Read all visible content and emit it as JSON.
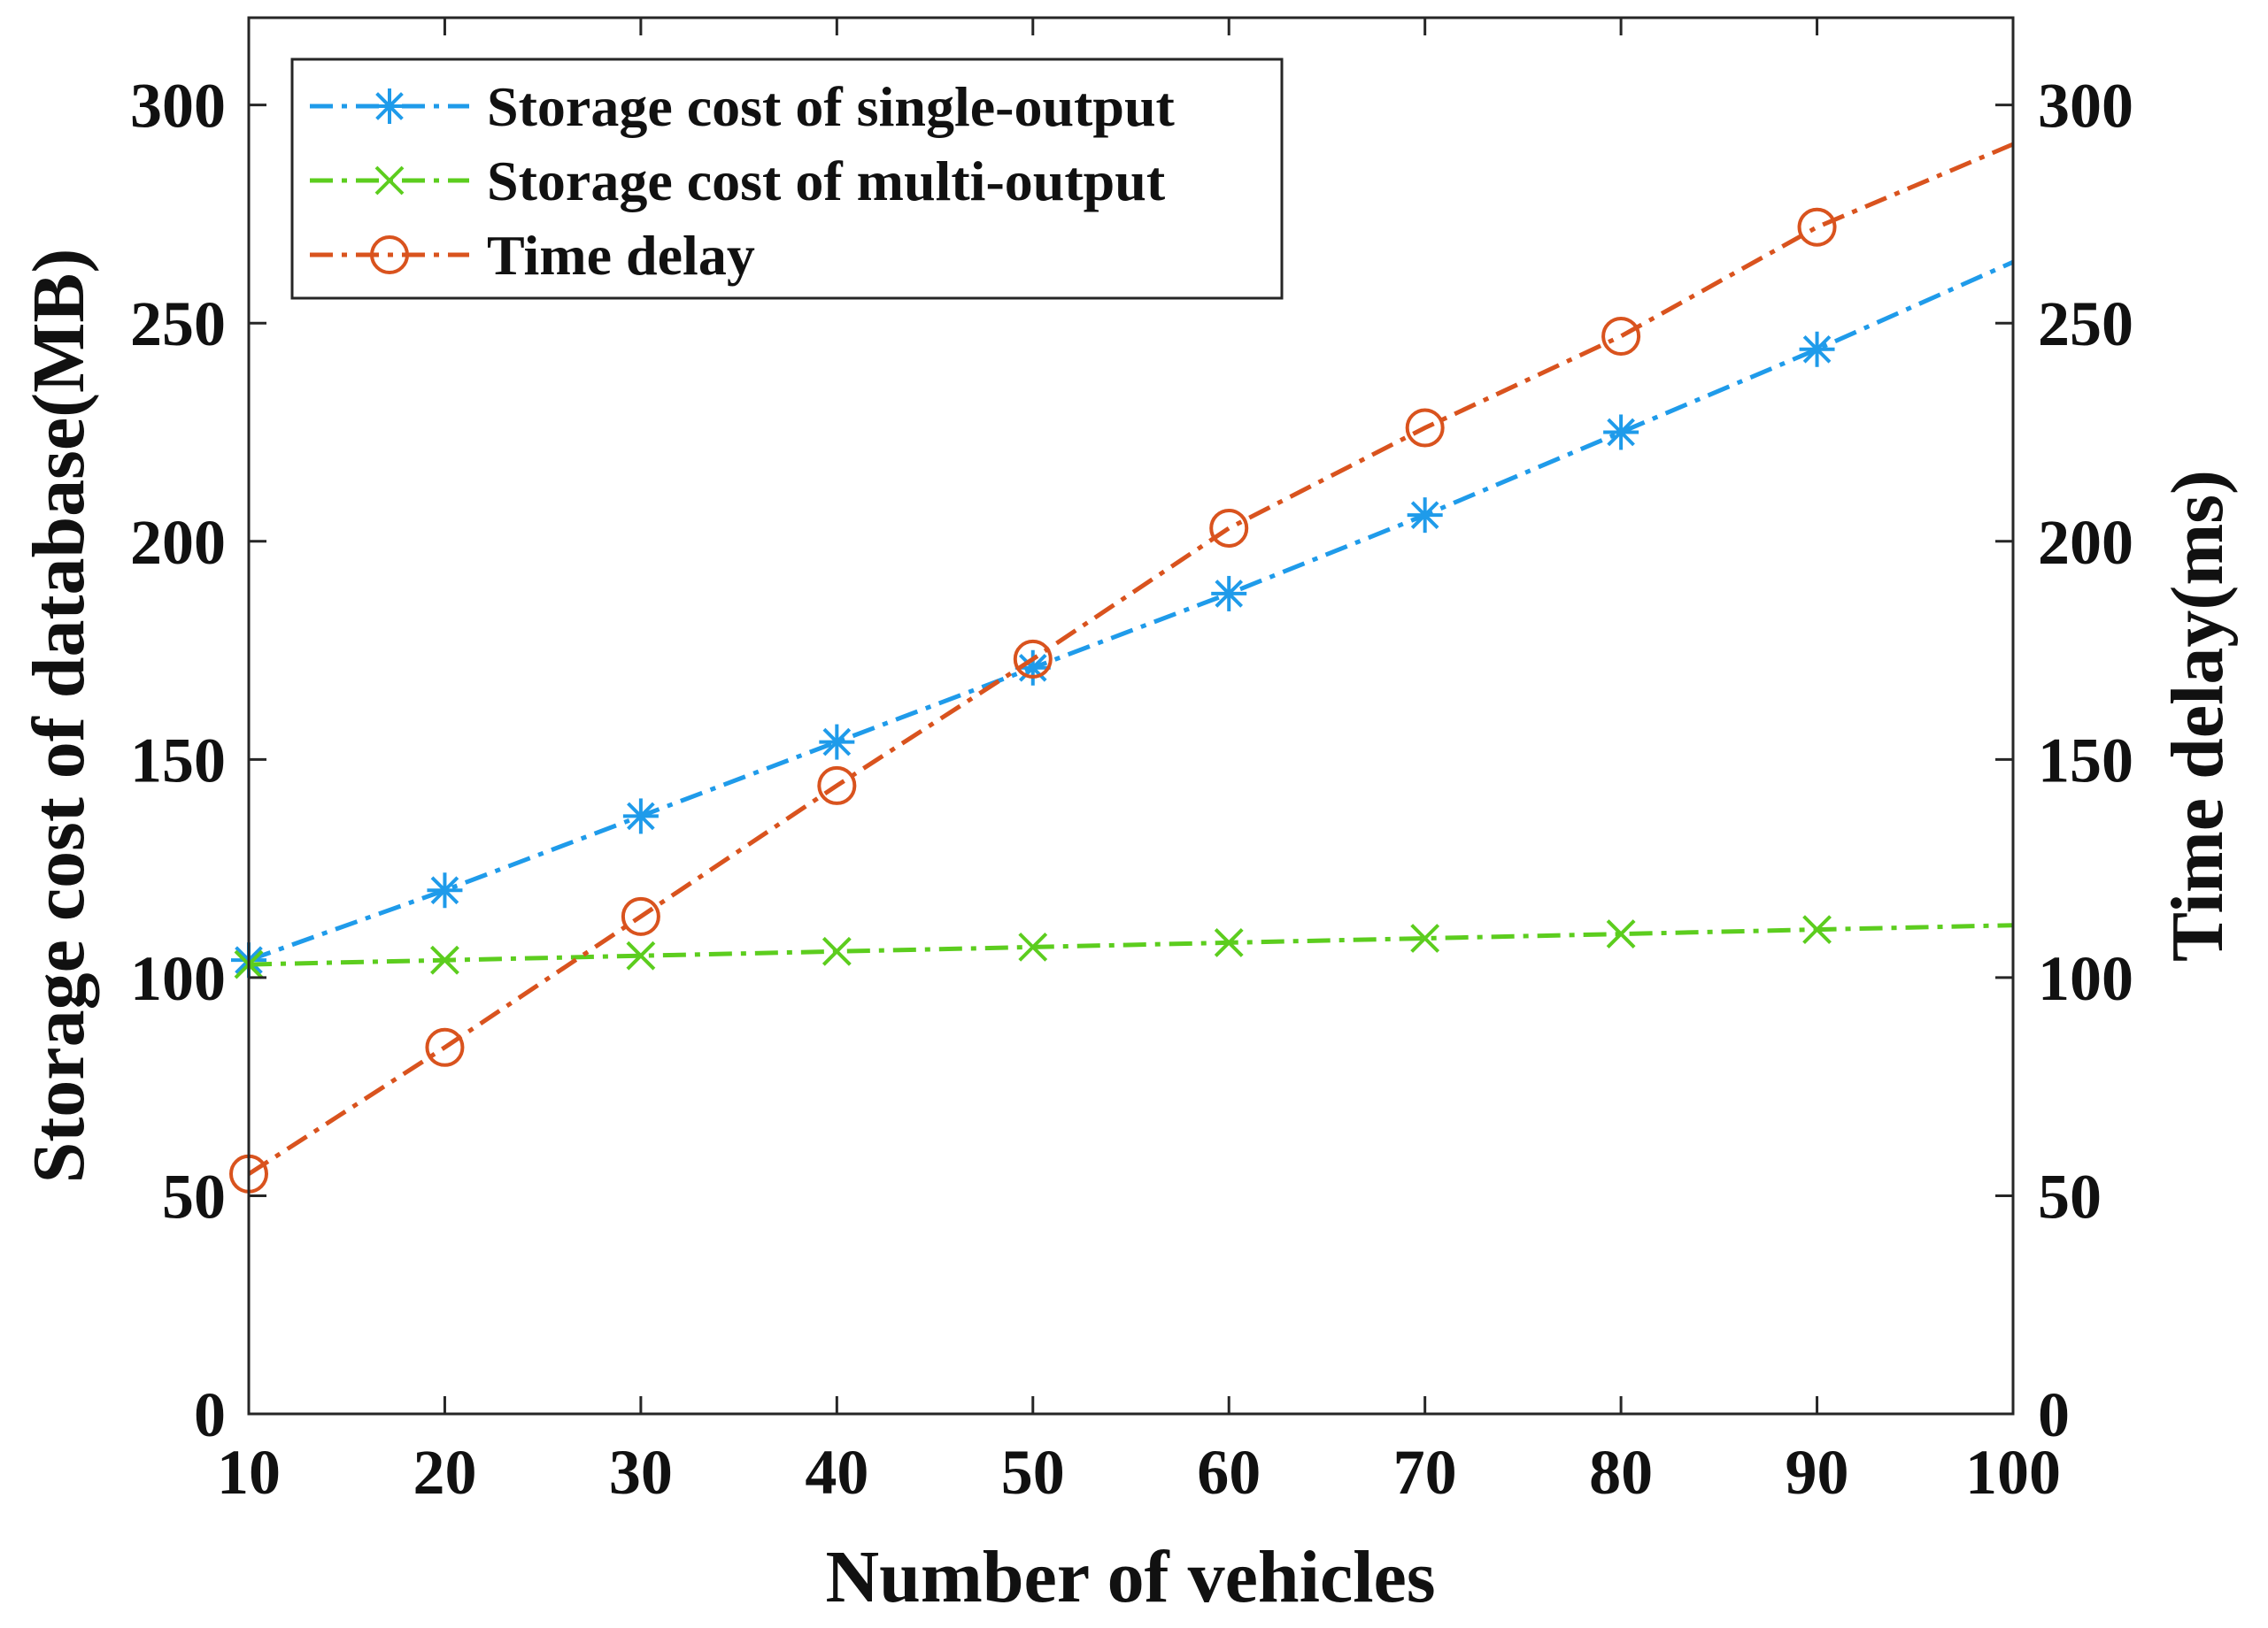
{
  "chart_data": {
    "type": "line",
    "title": "",
    "xlabel": "Number of vehicles",
    "ylabel_left": "Storage cost of database(MB)",
    "ylabel_right": "Time delay(ms)",
    "xlim": [
      10,
      100
    ],
    "ylim_left": [
      0,
      320
    ],
    "ylim_right": [
      0,
      320
    ],
    "x_ticks": [
      "10",
      "20",
      "30",
      "40",
      "50",
      "60",
      "70",
      "80",
      "90",
      "100"
    ],
    "y_ticks_left": [
      "0",
      "50",
      "100",
      "150",
      "200",
      "250",
      "300"
    ],
    "y_ticks_right": [
      "0",
      "50",
      "100",
      "150",
      "200",
      "250",
      "300"
    ],
    "grid": false,
    "legend_position": "top-left",
    "series": [
      {
        "name": "Storage cost of single-output",
        "axis": "left",
        "color": "#1f9bea",
        "marker": "asterisk",
        "x": [
          10,
          20,
          30,
          40,
          50,
          60,
          70,
          80,
          90,
          100
        ],
        "values": [
          104,
          120,
          137,
          154,
          171,
          188,
          206,
          225,
          244,
          264
        ],
        "marked": [
          true,
          true,
          true,
          true,
          true,
          true,
          true,
          true,
          true,
          false
        ]
      },
      {
        "name": "Storage cost of multi-output",
        "axis": "left",
        "color": "#5ccd1e",
        "marker": "x",
        "x": [
          10,
          20,
          30,
          40,
          50,
          60,
          70,
          80,
          90,
          100
        ],
        "values": [
          103,
          104,
          105,
          106,
          107,
          108,
          109,
          110,
          111,
          112
        ],
        "marked": [
          true,
          true,
          true,
          true,
          true,
          true,
          true,
          true,
          true,
          false
        ]
      },
      {
        "name": "Time delay",
        "axis": "right",
        "color": "#d9531e",
        "marker": "circle",
        "x": [
          10,
          20,
          30,
          40,
          50,
          60,
          70,
          80,
          90,
          100
        ],
        "values": [
          55,
          84,
          114,
          144,
          173,
          203,
          226,
          247,
          272,
          291
        ],
        "marked": [
          true,
          true,
          true,
          true,
          true,
          true,
          true,
          true,
          true,
          false
        ]
      }
    ]
  }
}
